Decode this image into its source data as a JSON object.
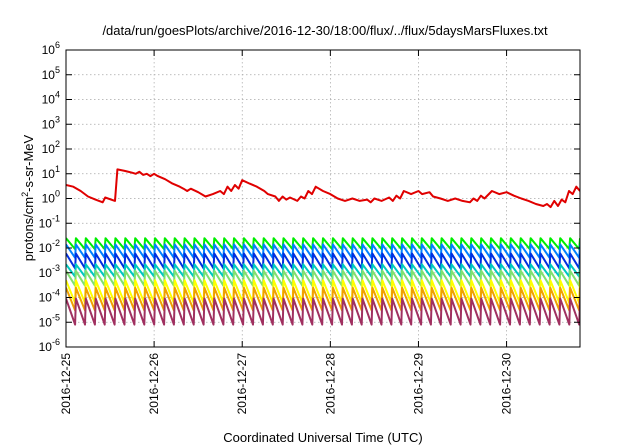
{
  "chart_data": {
    "type": "line",
    "title": "/data/run/goesPlots/archive/2016-12-30/18:00/flux/../flux/5daysMarsFluxes.txt",
    "xlabel": "Coordinated Universal Time (UTC)",
    "ylabel": {
      "prefix": "protons/cm",
      "superscript": "2",
      "suffix": "-s-sr-MeV"
    },
    "yscale": "log",
    "ylim": [
      1e-06,
      1000000.0
    ],
    "xlim": [
      "2016-12-25T00:00",
      "2016-12-30T20:00"
    ],
    "y_tick_labels": [
      {
        "base": "10",
        "exp": "-6",
        "value": 1e-06
      },
      {
        "base": "10",
        "exp": "-5",
        "value": 1e-05
      },
      {
        "base": "10",
        "exp": "-4",
        "value": 0.0001
      },
      {
        "base": "10",
        "exp": "-3",
        "value": 0.001
      },
      {
        "base": "10",
        "exp": "-2",
        "value": 0.01
      },
      {
        "base": "10",
        "exp": "-1",
        "value": 0.1
      },
      {
        "base": "10",
        "exp": "0",
        "value": 1
      },
      {
        "base": "10",
        "exp": "1",
        "value": 10
      },
      {
        "base": "10",
        "exp": "2",
        "value": 100
      },
      {
        "base": "10",
        "exp": "3",
        "value": 1000
      },
      {
        "base": "10",
        "exp": "4",
        "value": 10000
      },
      {
        "base": "10",
        "exp": "5",
        "value": 100000
      },
      {
        "base": "10",
        "exp": "6",
        "value": 1000000
      }
    ],
    "x_tick_labels": [
      "2016-12-25",
      "2016-12-26",
      "2016-12-27",
      "2016-12-28",
      "2016-12-29",
      "2016-12-30"
    ],
    "grid": true,
    "legend": "none",
    "series": [
      {
        "color": "#e00000",
        "points": [
          [
            "2016-12-25T00:00",
            3.5
          ],
          [
            "2016-12-25T02:00",
            3.0
          ],
          [
            "2016-12-25T04:00",
            2.0
          ],
          [
            "2016-12-25T06:00",
            1.2
          ],
          [
            "2016-12-25T08:00",
            0.9
          ],
          [
            "2016-12-25T10:00",
            0.7
          ],
          [
            "2016-12-25T10:40",
            1.1
          ],
          [
            "2016-12-25T13:20",
            0.8
          ],
          [
            "2016-12-25T14:00",
            15
          ],
          [
            "2016-12-25T16:00",
            13
          ],
          [
            "2016-12-25T18:00",
            11
          ],
          [
            "2016-12-25T19:00",
            10
          ],
          [
            "2016-12-25T20:00",
            12
          ],
          [
            "2016-12-25T21:00",
            9
          ],
          [
            "2016-12-25T22:00",
            10
          ],
          [
            "2016-12-25T23:00",
            8
          ],
          [
            "2016-12-26T00:00",
            10
          ],
          [
            "2016-12-26T01:00",
            8
          ],
          [
            "2016-12-26T03:00",
            6
          ],
          [
            "2016-12-26T05:00",
            4
          ],
          [
            "2016-12-26T07:00",
            3
          ],
          [
            "2016-12-26T08:00",
            2.5
          ],
          [
            "2016-12-26T09:00",
            2.0
          ],
          [
            "2016-12-26T10:00",
            2.5
          ],
          [
            "2016-12-26T12:00",
            1.8
          ],
          [
            "2016-12-26T14:00",
            1.2
          ],
          [
            "2016-12-26T16:00",
            1.5
          ],
          [
            "2016-12-26T18:00",
            2.0
          ],
          [
            "2016-12-26T19:00",
            1.5
          ],
          [
            "2016-12-26T20:00",
            3.0
          ],
          [
            "2016-12-26T21:00",
            2.0
          ],
          [
            "2016-12-26T22:00",
            3.5
          ],
          [
            "2016-12-26T23:00",
            2.5
          ],
          [
            "2016-12-27T00:00",
            5.5
          ],
          [
            "2016-12-27T02:00",
            4.0
          ],
          [
            "2016-12-27T04:00",
            3.0
          ],
          [
            "2016-12-27T06:00",
            2.0
          ],
          [
            "2016-12-27T07:00",
            1.5
          ],
          [
            "2016-12-27T09:00",
            1.2
          ],
          [
            "2016-12-27T10:00",
            0.8
          ],
          [
            "2016-12-27T11:00",
            1.2
          ],
          [
            "2016-12-27T12:00",
            0.9
          ],
          [
            "2016-12-27T13:00",
            1.1
          ],
          [
            "2016-12-27T15:00",
            0.8
          ],
          [
            "2016-12-27T16:00",
            1.2
          ],
          [
            "2016-12-27T17:00",
            1.0
          ],
          [
            "2016-12-27T18:00",
            2.0
          ],
          [
            "2016-12-27T19:00",
            1.5
          ],
          [
            "2016-12-27T20:00",
            3.0
          ],
          [
            "2016-12-27T22:00",
            2.0
          ],
          [
            "2016-12-28T00:00",
            1.5
          ],
          [
            "2016-12-28T02:00",
            1.0
          ],
          [
            "2016-12-28T04:00",
            0.8
          ],
          [
            "2016-12-28T06:00",
            1.0
          ],
          [
            "2016-12-28T08:00",
            0.8
          ],
          [
            "2016-12-28T10:00",
            0.9
          ],
          [
            "2016-12-28T11:00",
            0.7
          ],
          [
            "2016-12-28T12:00",
            1.0
          ],
          [
            "2016-12-28T14:00",
            0.8
          ],
          [
            "2016-12-28T16:00",
            1.1
          ],
          [
            "2016-12-28T17:00",
            0.8
          ],
          [
            "2016-12-28T18:00",
            1.3
          ],
          [
            "2016-12-28T19:00",
            1.0
          ],
          [
            "2016-12-28T20:00",
            2.0
          ],
          [
            "2016-12-28T22:00",
            1.5
          ],
          [
            "2016-12-29T00:00",
            2.0
          ],
          [
            "2016-12-29T01:00",
            1.5
          ],
          [
            "2016-12-29T03:00",
            1.8
          ],
          [
            "2016-12-29T04:00",
            1.2
          ],
          [
            "2016-12-29T06:00",
            1.0
          ],
          [
            "2016-12-29T08:00",
            0.8
          ],
          [
            "2016-12-29T10:00",
            1.0
          ],
          [
            "2016-12-29T12:00",
            0.8
          ],
          [
            "2016-12-29T14:00",
            0.7
          ],
          [
            "2016-12-29T15:00",
            1.0
          ],
          [
            "2016-12-29T16:00",
            0.8
          ],
          [
            "2016-12-29T17:00",
            1.3
          ],
          [
            "2016-12-29T18:00",
            1.0
          ],
          [
            "2016-12-29T20:00",
            2.0
          ],
          [
            "2016-12-29T22:00",
            1.5
          ],
          [
            "2016-12-30T00:00",
            1.8
          ],
          [
            "2016-12-30T02:00",
            1.3
          ],
          [
            "2016-12-30T04:00",
            1.0
          ],
          [
            "2016-12-30T06:00",
            0.8
          ],
          [
            "2016-12-30T08:00",
            0.6
          ],
          [
            "2016-12-30T10:00",
            0.5
          ],
          [
            "2016-12-30T11:00",
            0.6
          ],
          [
            "2016-12-30T12:00",
            0.45
          ],
          [
            "2016-12-30T13:00",
            0.8
          ],
          [
            "2016-12-30T14:00",
            0.5
          ],
          [
            "2016-12-30T15:00",
            0.9
          ],
          [
            "2016-12-30T16:00",
            0.7
          ],
          [
            "2016-12-30T17:00",
            2.0
          ],
          [
            "2016-12-30T18:00",
            1.5
          ],
          [
            "2016-12-30T19:00",
            3.0
          ],
          [
            "2016-12-30T20:00",
            2.0
          ]
        ]
      },
      {
        "color": "#00ee00",
        "sawtooth": {
          "min": 0.009,
          "max": 0.025,
          "cycles": 52,
          "start": "2016-12-25T00:00",
          "end": "2016-12-30T20:00"
        }
      },
      {
        "color": "#0080ff",
        "sawtooth": {
          "min": 0.004,
          "max": 0.014,
          "cycles": 52,
          "start": "2016-12-25T00:00",
          "end": "2016-12-30T20:00"
        }
      },
      {
        "color": "#0030e0",
        "sawtooth": {
          "min": 0.0015,
          "max": 0.006,
          "cycles": 52,
          "start": "2016-12-25T00:00",
          "end": "2016-12-30T20:00"
        }
      },
      {
        "color": "#00c8c0",
        "sawtooth": {
          "min": 0.0007,
          "max": 0.0022,
          "cycles": 52,
          "start": "2016-12-25T00:00",
          "end": "2016-12-30T20:00"
        }
      },
      {
        "color": "#80e070",
        "sawtooth": {
          "min": 0.0003,
          "max": 0.0012,
          "cycles": 52,
          "start": "2016-12-25T00:00",
          "end": "2016-12-30T20:00"
        }
      },
      {
        "color": "#ffff00",
        "sawtooth": {
          "min": 6e-05,
          "max": 0.0005,
          "cycles": 52,
          "start": "2016-12-25T00:00",
          "end": "2016-12-30T20:00"
        }
      },
      {
        "color": "#f0a000",
        "sawtooth": {
          "min": 3e-05,
          "max": 0.00025,
          "cycles": 52,
          "start": "2016-12-25T00:00",
          "end": "2016-12-30T20:00"
        }
      },
      {
        "color": "#a03060",
        "sawtooth": {
          "min": 8e-06,
          "max": 9e-05,
          "cycles": 52,
          "start": "2016-12-25T00:00",
          "end": "2016-12-30T20:00"
        }
      }
    ]
  }
}
